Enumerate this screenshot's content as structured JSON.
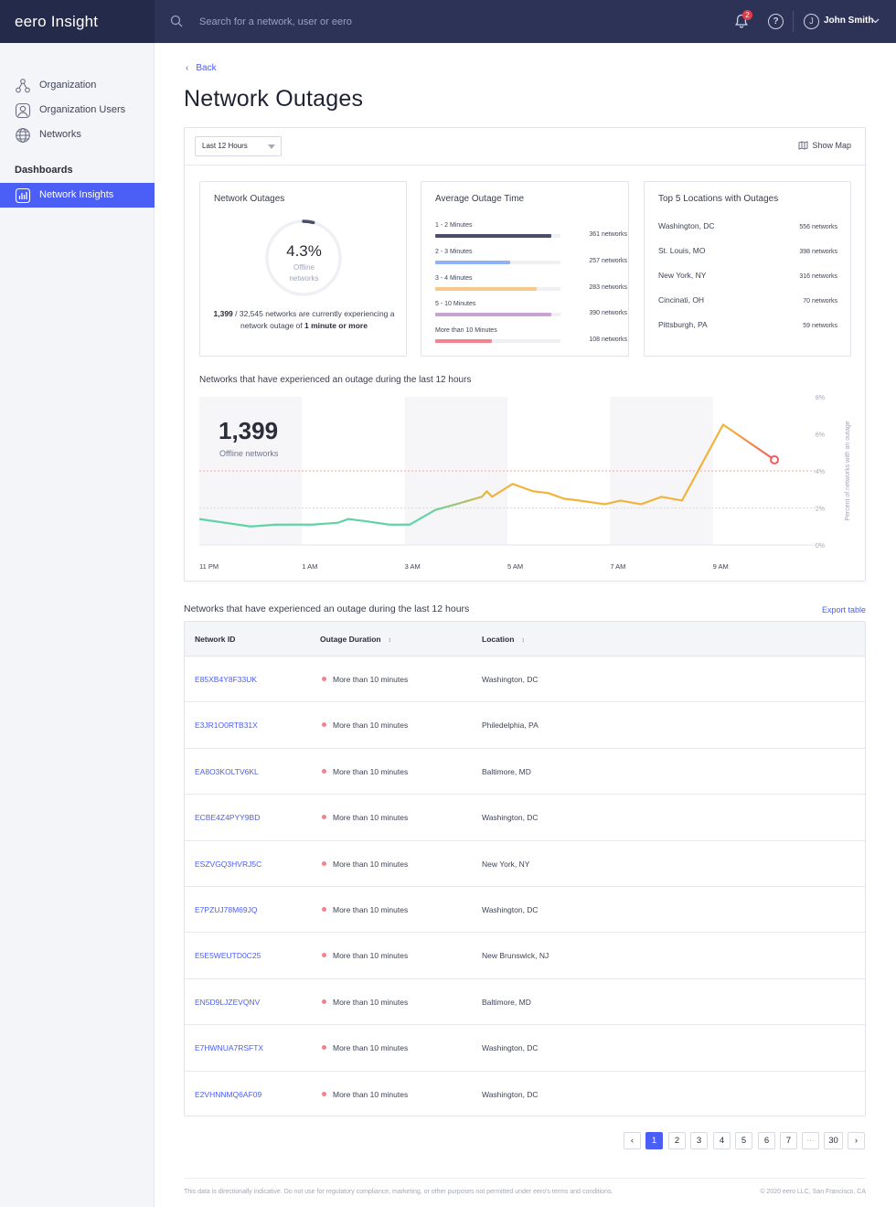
{
  "app": {
    "brand": "eero Insight"
  },
  "header": {
    "search_placeholder": "Search for a network, user or eero",
    "notification_count": "2",
    "help_glyph": "?",
    "user_initial": "J",
    "user_name": "John Smith"
  },
  "sidebar": {
    "items": [
      {
        "label": "Organization",
        "icon": "organization-icon"
      },
      {
        "label": "Organization Users",
        "icon": "user-icon"
      },
      {
        "label": "Networks",
        "icon": "globe-icon"
      }
    ],
    "section_label": "Dashboards",
    "dashboards": [
      {
        "label": "Network Insights",
        "icon": "chart-icon",
        "active": true
      }
    ]
  },
  "page": {
    "back_label": "Back",
    "title": "Network Outages"
  },
  "filters": {
    "range_value": "Last 12 Hours",
    "show_map_label": "Show Map"
  },
  "outages_card": {
    "title": "Network Outages",
    "percent": "4.3%",
    "percent_value": 4.3,
    "sub_line1": "Offline",
    "sub_line2": "networks",
    "count": "1,399",
    "total_text": " / 32,545 networks are currently experiencing a network outage of ",
    "threshold": "1 minute or more"
  },
  "duration_card": {
    "title": "Average Outage Time",
    "rows": [
      {
        "label": "1 - 2 Minutes",
        "count": "361 networks",
        "fraction": 0.93,
        "color": "#4a4e6a"
      },
      {
        "label": "2 - 3 Minutes",
        "count": "257 networks",
        "fraction": 0.6,
        "color": "#8fb2f5"
      },
      {
        "label": "3 - 4 Minutes",
        "count": "283 networks",
        "fraction": 0.81,
        "color": "#f6c98a"
      },
      {
        "label": "5 - 10 Minutes",
        "count": "390 networks",
        "fraction": 0.93,
        "color": "#c9a3d1"
      },
      {
        "label": "More than 10 Minutes",
        "count": "108 networks",
        "fraction": 0.45,
        "color": "#f5838f"
      }
    ]
  },
  "locations_card": {
    "title": "Top 5 Locations with Outages",
    "rows": [
      {
        "name": "Washington, DC",
        "count": "556 networks"
      },
      {
        "name": "St. Louis, MO",
        "count": "398 networks"
      },
      {
        "name": "New York, NY",
        "count": "316 networks"
      },
      {
        "name": "Cincinati, OH",
        "count": "70 networks"
      },
      {
        "name": "Pittsburgh, PA",
        "count": "59 networks"
      }
    ]
  },
  "chart": {
    "title": "Networks that have experienced an outage during the last 12 hours",
    "big_number": "1,399",
    "big_label": "Offline networks"
  },
  "chart_data": {
    "type": "line",
    "title": "Networks that have experienced an outage during the last 12 hours",
    "xlabel": "",
    "ylabel": "Percent of networks with an outage",
    "x_ticks": [
      "11 PM",
      "1 AM",
      "3 AM",
      "5 AM",
      "7 AM",
      "9 AM"
    ],
    "y_ticks": [
      "8%",
      "6%",
      "4%",
      "2%",
      "0%"
    ],
    "ylim": [
      0,
      8
    ],
    "xlim": [
      0,
      12
    ],
    "thresholds": [
      4,
      2
    ],
    "shaded_hour_bands": [
      [
        0,
        2
      ],
      [
        4,
        6
      ],
      [
        8,
        10
      ]
    ],
    "series": [
      {
        "x": [
          0,
          1,
          1.5,
          2.2,
          2.7,
          2.9,
          3.2,
          3.7,
          4.1,
          4.6,
          5,
          5.5,
          5.6,
          5.7,
          6.1,
          6.5,
          6.8,
          7.1,
          7.4,
          7.9,
          8.2,
          8.6,
          9,
          9.4,
          10.2,
          11.2
        ],
        "y": [
          1.4,
          1.0,
          1.1,
          1.1,
          1.2,
          1.4,
          1.3,
          1.1,
          1.1,
          1.9,
          2.2,
          2.6,
          2.9,
          2.6,
          3.3,
          2.9,
          2.8,
          2.5,
          2.4,
          2.2,
          2.4,
          2.2,
          2.6,
          2.4,
          6.5,
          4.6
        ]
      }
    ]
  },
  "list": {
    "title": "Networks that have experienced an outage during the last 12 hours",
    "export_label": "Export table",
    "headers": {
      "id": "Network ID",
      "duration": "Outage Duration",
      "location": "Location",
      "sort_glyph": "↕"
    },
    "rows": [
      {
        "id": "E85XB4Y8F33UK",
        "duration": "More than 10 minutes",
        "location": "Washington, DC"
      },
      {
        "id": "E3JR1O0RTB31X",
        "duration": "More than 10 minutes",
        "location": "Philedelphia, PA"
      },
      {
        "id": "EA8O3KOLTV6KL",
        "duration": "More than 10 minutes",
        "location": "Baltimore, MD"
      },
      {
        "id": "ECBE4Z4PYY9BD",
        "duration": "More than 10 minutes",
        "location": "Washington, DC"
      },
      {
        "id": "ESZVGQ3HVRJ5C",
        "duration": "More than 10 minutes",
        "location": "New York, NY"
      },
      {
        "id": "E7PZUJ78M69JQ",
        "duration": "More than 10 minutes",
        "location": "Washington, DC"
      },
      {
        "id": "E5E5WEUTD0C25",
        "duration": "More than 10 minutes",
        "location": "New Brunswick, NJ"
      },
      {
        "id": "EN5D9LJZEVQNV",
        "duration": "More than 10 minutes",
        "location": "Baltimore, MD"
      },
      {
        "id": "E7HWNUA7RSFTX",
        "duration": "More than 10 minutes",
        "location": "Washington, DC"
      },
      {
        "id": "E2VHNNMQ6AF09",
        "duration": "More than 10 minutes",
        "location": "Washington, DC"
      }
    ]
  },
  "pagination": {
    "prev": "‹",
    "next": "›",
    "pages": [
      "1",
      "2",
      "3",
      "4",
      "5",
      "6",
      "7",
      "···",
      "30"
    ],
    "current": "1"
  },
  "footer": {
    "disclaimer": "This data is directionally indicative. Do not use for regulatory compliance, marketing, or other purposes not permitted under eero's terms and conditions.",
    "copyright": "© 2020 eero LLC, San Francisco, CA"
  },
  "colors": {
    "accent": "#4b5ef5",
    "topbar": "#2d3356",
    "ok_line": "#5fd3a6",
    "warn_line": "#f2b33d",
    "bad_line": "#f25c5c"
  }
}
